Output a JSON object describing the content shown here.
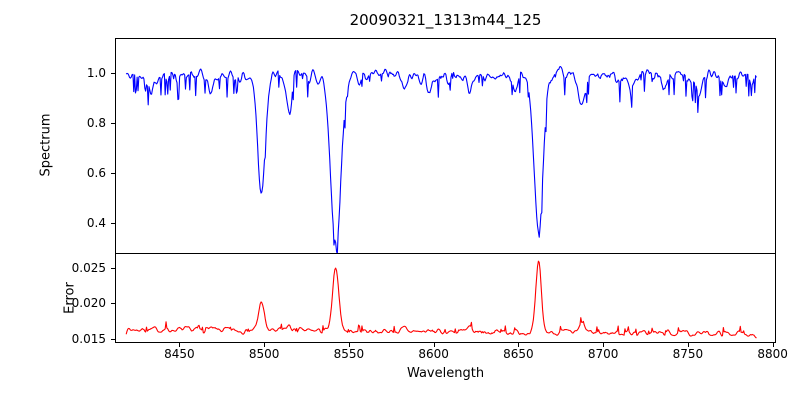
{
  "title": "20090321_1313m44_125",
  "background": "#ffffff",
  "axes_color": "#000000",
  "chart_data": [
    {
      "type": "line",
      "name": "Spectrum",
      "ylabel": "Spectrum",
      "color": "#0000ff",
      "xlim": [
        8412,
        8802
      ],
      "ylim": [
        0.28,
        1.14
      ],
      "yticks": [
        1.0,
        0.8,
        0.6,
        0.4
      ],
      "ytick_labels": [
        "1.0",
        "0.8",
        "0.6",
        "0.4"
      ],
      "x_start": 8418,
      "x_end": 8791,
      "n_points": 744,
      "level": 0.99,
      "noise_amp": 0.045,
      "spike_prob": 0.12,
      "spike_amp": -0.08,
      "trend": 0,
      "seed": 42,
      "lines": [
        {
          "center": 8498.0,
          "amp": -0.46,
          "width": 2.2
        },
        {
          "center": 8542.1,
          "amp": -0.67,
          "width": 3.0
        },
        {
          "center": 8662.1,
          "amp": -0.63,
          "width": 2.6
        },
        {
          "center": 8514.2,
          "amp": -0.15,
          "width": 1.6
        },
        {
          "center": 8688.0,
          "amp": -0.12,
          "width": 1.8
        },
        {
          "center": 8433.0,
          "amp": -0.06,
          "width": 1.4
        },
        {
          "center": 8468.0,
          "amp": -0.07,
          "width": 1.4
        },
        {
          "center": 8583.0,
          "amp": -0.06,
          "width": 1.4
        },
        {
          "center": 8598.0,
          "amp": -0.07,
          "width": 1.4
        },
        {
          "center": 8621.0,
          "amp": -0.06,
          "width": 1.4
        },
        {
          "center": 8648.0,
          "amp": -0.05,
          "width": 1.2
        },
        {
          "center": 8717.0,
          "amp": -0.06,
          "width": 1.4
        },
        {
          "center": 8736.0,
          "amp": -0.06,
          "width": 1.2
        },
        {
          "center": 8757.0,
          "amp": -0.07,
          "width": 1.4
        },
        {
          "center": 8773.0,
          "amp": -0.06,
          "width": 1.2
        }
      ]
    },
    {
      "type": "line",
      "name": "Error",
      "ylabel": "Error",
      "xlabel": "Wavelength",
      "color": "#ff0000",
      "xlim": [
        8412,
        8802
      ],
      "ylim": [
        0.0144,
        0.0271
      ],
      "yticks": [
        0.025,
        0.02,
        0.015
      ],
      "ytick_labels": [
        "0.025",
        "0.020",
        "0.015"
      ],
      "xticks": [
        8450,
        8500,
        8550,
        8600,
        8650,
        8700,
        8750,
        8800
      ],
      "xtick_labels": [
        "8450",
        "8500",
        "8550",
        "8600",
        "8650",
        "8700",
        "8750",
        "8800"
      ],
      "x_start": 8418,
      "x_end": 8791,
      "n_points": 744,
      "level": 0.0162,
      "noise_amp": 0.0007,
      "spike_prob": 0.08,
      "spike_amp": 0.0009,
      "trend": -0.0006,
      "seed": 7,
      "lines": [
        {
          "center": 8498.0,
          "amp": 0.0042,
          "width": 1.6
        },
        {
          "center": 8542.1,
          "amp": 0.0092,
          "width": 1.8
        },
        {
          "center": 8662.1,
          "amp": 0.0099,
          "width": 1.6
        },
        {
          "center": 8688.0,
          "amp": 0.0014,
          "width": 1.4
        },
        {
          "center": 8514.2,
          "amp": 0.0007,
          "width": 1.3
        },
        {
          "center": 8621.0,
          "amp": 0.0005,
          "width": 1.2
        },
        {
          "center": 8583.0,
          "amp": 0.0004,
          "width": 1.2
        },
        {
          "center": 8467.0,
          "amp": 0.0003,
          "width": 1.2
        }
      ]
    }
  ]
}
